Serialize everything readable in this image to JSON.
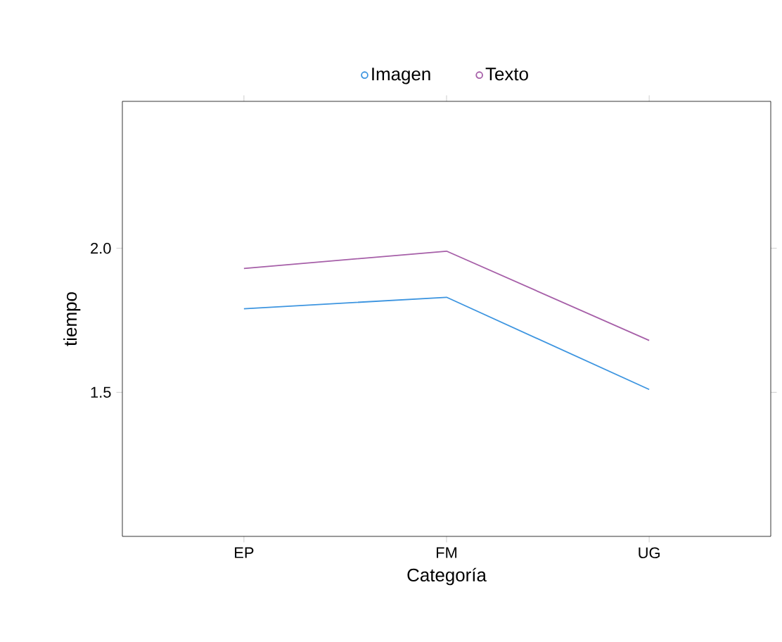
{
  "chart_data": {
    "type": "line",
    "xlabel": "Categoría",
    "ylabel": "tiempo",
    "categories": [
      "EP",
      "FM",
      "UG"
    ],
    "series": [
      {
        "name": "Imagen",
        "color": "#3d95e0",
        "values": [
          1.79,
          1.83,
          1.51
        ]
      },
      {
        "name": "Texto",
        "color": "#a65fa8",
        "values": [
          1.93,
          1.99,
          1.68
        ]
      }
    ],
    "ylim": [
      1.0,
      2.51
    ],
    "yticks": [
      {
        "value": 1.5,
        "label": "1.5"
      },
      {
        "value": 2.0,
        "label": "2.0"
      }
    ],
    "grid": false,
    "legend": "top",
    "marker": "none",
    "line_style": "solid"
  }
}
